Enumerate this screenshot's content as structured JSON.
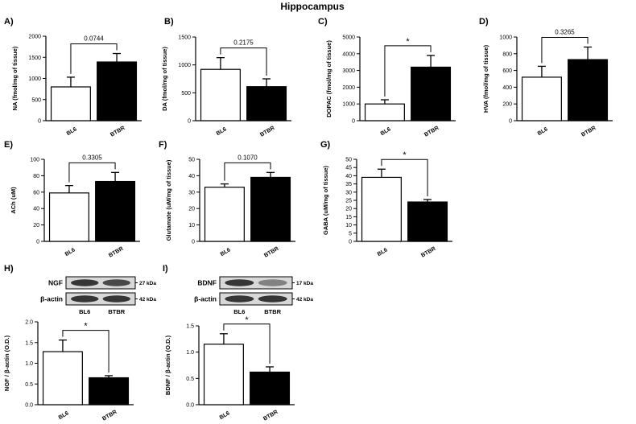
{
  "figure": {
    "title": "Hippocampus"
  },
  "colors": {
    "bl6": "#ffffff",
    "btbr": "#000000",
    "axis": "#000000"
  },
  "chart_data": [
    {
      "panel": "A)",
      "type": "bar",
      "categories": [
        "BL6",
        "BTBR"
      ],
      "values": [
        800,
        1390
      ],
      "errors": [
        230,
        200
      ],
      "ylabel": "NA (fmol/mg of tissue)",
      "ylim": [
        0,
        2000
      ],
      "yticks": [
        0,
        500,
        1000,
        1500,
        2000
      ],
      "annotation": {
        "text": "0.0744",
        "between": [
          0,
          1
        ]
      }
    },
    {
      "panel": "B)",
      "type": "bar",
      "categories": [
        "BL6",
        "BTBR"
      ],
      "values": [
        920,
        610
      ],
      "errors": [
        210,
        140
      ],
      "ylabel": "DA (fmol/mg of tissue)",
      "ylim": [
        0,
        1500
      ],
      "yticks": [
        0,
        500,
        1000,
        1500
      ],
      "annotation": {
        "text": "0.2175",
        "between": [
          0,
          1
        ]
      }
    },
    {
      "panel": "C)",
      "type": "bar",
      "categories": [
        "BL6",
        "BTBR"
      ],
      "values": [
        1000,
        3200
      ],
      "errors": [
        250,
        700
      ],
      "ylabel": "DOPAC (fmol/mg of tissue)",
      "ylim": [
        0,
        5000
      ],
      "yticks": [
        0,
        1000,
        2000,
        3000,
        4000,
        5000
      ],
      "annotation": {
        "text": "*",
        "between": [
          0,
          1
        ]
      }
    },
    {
      "panel": "D)",
      "type": "bar",
      "categories": [
        "BL6",
        "BTBR"
      ],
      "values": [
        520,
        730
      ],
      "errors": [
        130,
        150
      ],
      "ylabel": "HVA (fmol/mg of tissue)",
      "ylim": [
        0,
        1000
      ],
      "yticks": [
        0,
        200,
        400,
        600,
        800,
        1000
      ],
      "annotation": {
        "text": "0.3265",
        "between": [
          0,
          1
        ]
      }
    },
    {
      "panel": "E)",
      "type": "bar",
      "categories": [
        "BL6",
        "BTBR"
      ],
      "values": [
        59,
        73
      ],
      "errors": [
        9,
        11
      ],
      "ylabel": "ACh (uM)",
      "ylim": [
        0,
        100
      ],
      "yticks": [
        0,
        20,
        40,
        60,
        80,
        100
      ],
      "annotation": {
        "text": "0.3305",
        "between": [
          0,
          1
        ]
      }
    },
    {
      "panel": "F)",
      "type": "bar",
      "categories": [
        "BL6",
        "BTBR"
      ],
      "values": [
        33,
        39
      ],
      "errors": [
        2,
        3
      ],
      "ylabel": "Glutamate (uM/mg of tissue)",
      "ylim": [
        0,
        50
      ],
      "yticks": [
        0,
        10,
        20,
        30,
        40,
        50
      ],
      "annotation": {
        "text": "0.1070",
        "between": [
          0,
          1
        ]
      }
    },
    {
      "panel": "G)",
      "type": "bar",
      "categories": [
        "BL6",
        "BTBR"
      ],
      "values": [
        39,
        24
      ],
      "errors": [
        5,
        1.5
      ],
      "ylabel": "GABA (uM/mg of tissue)",
      "ylim": [
        0,
        50
      ],
      "yticks": [
        0,
        5,
        10,
        15,
        20,
        25,
        30,
        35,
        40,
        45,
        50
      ],
      "annotation": {
        "text": "*",
        "between": [
          0,
          1
        ]
      }
    },
    {
      "panel": "H)",
      "type": "bar",
      "categories": [
        "BL6",
        "BTBR"
      ],
      "values": [
        1.28,
        0.65
      ],
      "errors": [
        0.28,
        0.05
      ],
      "ylabel": "NGF / β-actin (O.D.)",
      "ylim": [
        0,
        2.0
      ],
      "yticks": [
        "0.0",
        "0.5",
        "1.0",
        "1.5",
        "2.0"
      ],
      "annotation": {
        "text": "*",
        "between": [
          0,
          1
        ]
      },
      "blot": {
        "target": "NGF",
        "target_kda": "27 kDa",
        "control": "β-actin",
        "control_kda": "42 kDa",
        "lanes": [
          "BL6",
          "BTBR"
        ]
      }
    },
    {
      "panel": "I)",
      "type": "bar",
      "categories": [
        "BL6",
        "BTBR"
      ],
      "values": [
        1.15,
        0.62
      ],
      "errors": [
        0.2,
        0.1
      ],
      "ylabel": "BDNF / β-actin (O.D.)",
      "ylim": [
        0,
        1.5
      ],
      "yticks": [
        "0.0",
        "0.5",
        "1.0",
        "1.5"
      ],
      "annotation": {
        "text": "*",
        "between": [
          0,
          1
        ]
      },
      "blot": {
        "target": "BDNF",
        "target_kda": "17 kDa",
        "control": "β-actin",
        "control_kda": "42 kDa",
        "lanes": [
          "BL6",
          "BTBR"
        ]
      }
    }
  ]
}
